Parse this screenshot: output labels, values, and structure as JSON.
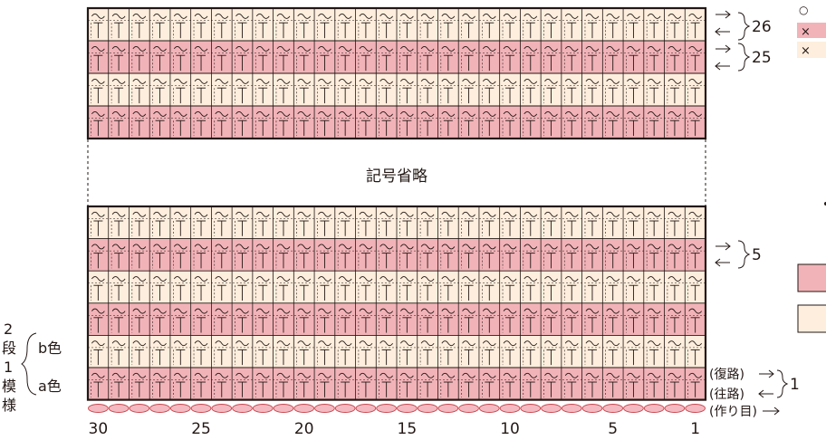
{
  "omission_text": "記号省略",
  "colors": {
    "color_a": "#f2b3b8",
    "color_b": "#fdeedd",
    "line": "#231815",
    "chain": "#f4b9c1",
    "chain_stroke": "#c9484f"
  },
  "column_count": 30,
  "column_numbers": [
    "30",
    "25",
    "20",
    "15",
    "10",
    "5",
    "1"
  ],
  "top_section_rows": [
    "b",
    "a",
    "b",
    "a"
  ],
  "bottom_section_rows": [
    "b",
    "a",
    "b",
    "a",
    "b",
    "a"
  ],
  "row_labels": {
    "row26": "26",
    "row25": "25",
    "row5": "5",
    "row1": "1"
  },
  "direction_labels": {
    "return": "(復路)",
    "outgoing": "(往路)",
    "foundation": "(作り目)"
  },
  "pattern_repeat": {
    "line1": "2",
    "line2": "段",
    "line3": "1",
    "line4": "模",
    "line5": "様",
    "color_b_label": "b色",
    "color_a_label": "a色"
  },
  "legend": {
    "symbol_glyph": "○",
    "row_a_glyph": "×",
    "row_b_glyph": "×"
  }
}
